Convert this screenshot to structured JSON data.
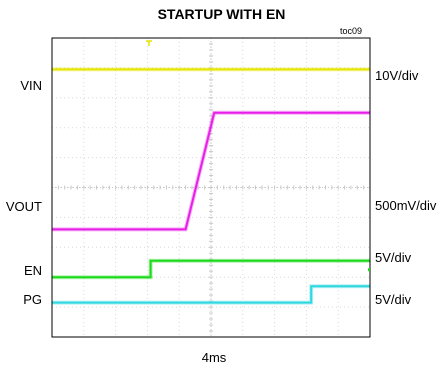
{
  "header": {
    "title": "STARTUP WITH EN",
    "code": "toc09"
  },
  "channels": {
    "vin": {
      "label": "VIN",
      "scale": "10V/div"
    },
    "vout": {
      "label": "VOUT",
      "scale": "500mV/div"
    },
    "en": {
      "label": "EN",
      "scale": "5V/div"
    },
    "pg": {
      "label": "PG",
      "scale": "5V/div"
    }
  },
  "timebase": "4ms",
  "colors": {
    "vin": "#e6e600",
    "vout": "#e81fe8",
    "en": "#1bd91b",
    "pg": "#2fd8e0",
    "grid": "#d9d9d9",
    "frame": "#000000"
  },
  "chart_data": {
    "type": "line",
    "title": "STARTUP WITH EN",
    "xlabel": "4ms",
    "x_unit": "div",
    "xlim": [
      0,
      10
    ],
    "ylim": [
      0,
      10
    ],
    "grid": true,
    "series": [
      {
        "name": "VIN",
        "x": [
          0,
          10
        ],
        "values": [
          8.95,
          8.95
        ]
      },
      {
        "name": "VOUT",
        "x": [
          0,
          4.2,
          5.1,
          5.35,
          10
        ],
        "values": [
          3.6,
          3.6,
          7.5,
          7.5,
          7.5
        ]
      },
      {
        "name": "EN",
        "x": [
          0,
          3.1,
          3.1,
          10
        ],
        "values": [
          2.0,
          2.0,
          2.55,
          2.55
        ]
      },
      {
        "name": "PG",
        "x": [
          0,
          8.15,
          8.15,
          10
        ],
        "values": [
          1.15,
          1.15,
          1.7,
          1.7
        ]
      }
    ]
  }
}
